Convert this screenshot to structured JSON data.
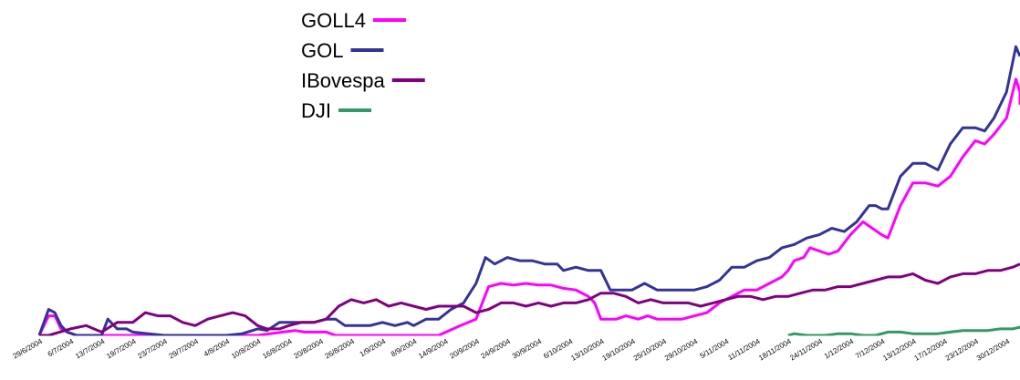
{
  "chart_data": {
    "type": "line",
    "title": "",
    "xlabel": "",
    "ylabel": "",
    "x_ticks": [
      "29/6/2004",
      "6/7/2004",
      "13/7/2004",
      "19/7/2004",
      "23/7/2004",
      "29/7/2004",
      "4/8/2004",
      "10/8/2004",
      "16/8/2004",
      "20/8/2004",
      "26/8/2004",
      "1/9/2004",
      "8/9/2004",
      "14/9/2004",
      "20/9/2004",
      "24/9/2004",
      "30/9/2004",
      "6/10/2004",
      "13/10/2004",
      "19/10/2004",
      "25/10/2004",
      "29/10/2004",
      "5/11/2004",
      "11/11/2004",
      "18/11/2004",
      "24/11/2004",
      "1/12/2004",
      "7/12/2004",
      "13/12/2004",
      "17/12/2004",
      "23/12/2004",
      "30/12/2004"
    ],
    "xlim": [
      0,
      31.6
    ],
    "ylim": [
      0,
      100
    ],
    "legend_position": "top-center",
    "grid": false,
    "series": [
      {
        "name": "GOLL4",
        "color": "#ff00ff",
        "points": [
          [
            0,
            0
          ],
          [
            0.3,
            6
          ],
          [
            0.5,
            6
          ],
          [
            0.7,
            2
          ],
          [
            0.9,
            1
          ],
          [
            1.2,
            0
          ],
          [
            2,
            0
          ],
          [
            3,
            0
          ],
          [
            3.5,
            0
          ],
          [
            4,
            0
          ],
          [
            6,
            0
          ],
          [
            7,
            0
          ],
          [
            7.8,
            1
          ],
          [
            8.2,
            1.5
          ],
          [
            8.5,
            1
          ],
          [
            8.8,
            1
          ],
          [
            9.2,
            1
          ],
          [
            9.5,
            0
          ],
          [
            12.8,
            0
          ],
          [
            13.5,
            3
          ],
          [
            14,
            5
          ],
          [
            14.4,
            15
          ],
          [
            14.8,
            16
          ],
          [
            15.2,
            15.5
          ],
          [
            15.6,
            16
          ],
          [
            16,
            15.5
          ],
          [
            16.4,
            15.5
          ],
          [
            16.8,
            14.5
          ],
          [
            17.2,
            14
          ],
          [
            17.6,
            12
          ],
          [
            17.8,
            10
          ],
          [
            18,
            5
          ],
          [
            18.5,
            5
          ],
          [
            18.8,
            6
          ],
          [
            19.2,
            5
          ],
          [
            19.5,
            6
          ],
          [
            19.8,
            5
          ],
          [
            20.2,
            5
          ],
          [
            20.6,
            5
          ],
          [
            21,
            6
          ],
          [
            21.4,
            7
          ],
          [
            21.8,
            10
          ],
          [
            22.2,
            12
          ],
          [
            22.6,
            14
          ],
          [
            23,
            14
          ],
          [
            23.4,
            16
          ],
          [
            23.8,
            18
          ],
          [
            24,
            20
          ],
          [
            24.2,
            23
          ],
          [
            24.5,
            24
          ],
          [
            24.7,
            27
          ],
          [
            25,
            26
          ],
          [
            25.3,
            25
          ],
          [
            25.6,
            26
          ],
          [
            26,
            31
          ],
          [
            26.4,
            35
          ],
          [
            26.7,
            33
          ],
          [
            27,
            31
          ],
          [
            27.2,
            30
          ],
          [
            27.6,
            40
          ],
          [
            28,
            47
          ],
          [
            28.4,
            47
          ],
          [
            28.8,
            46
          ],
          [
            29.2,
            49
          ],
          [
            29.6,
            55
          ],
          [
            30,
            60
          ],
          [
            30.3,
            59
          ],
          [
            30.6,
            62
          ],
          [
            31,
            67
          ],
          [
            31.3,
            79
          ],
          [
            31.6,
            75
          ],
          [
            32,
            71
          ]
        ]
      },
      {
        "name": "GOL",
        "color": "#333399",
        "points": [
          [
            0,
            0
          ],
          [
            0.3,
            8
          ],
          [
            0.5,
            7
          ],
          [
            0.7,
            3
          ],
          [
            0.9,
            1
          ],
          [
            1.2,
            0
          ],
          [
            1.5,
            0
          ],
          [
            2,
            0
          ],
          [
            2.2,
            5
          ],
          [
            2.5,
            2
          ],
          [
            2.8,
            2
          ],
          [
            3,
            1
          ],
          [
            3.5,
            0.5
          ],
          [
            4,
            0
          ],
          [
            5,
            0
          ],
          [
            6,
            0
          ],
          [
            6.5,
            0.5
          ],
          [
            7,
            2
          ],
          [
            7.3,
            1.5
          ],
          [
            7.7,
            4
          ],
          [
            8,
            4
          ],
          [
            8.4,
            4
          ],
          [
            8.8,
            4
          ],
          [
            9.2,
            5
          ],
          [
            9.5,
            5
          ],
          [
            9.8,
            3
          ],
          [
            10.2,
            3
          ],
          [
            10.6,
            3
          ],
          [
            11,
            4
          ],
          [
            11.4,
            3
          ],
          [
            11.8,
            4
          ],
          [
            12,
            3
          ],
          [
            12.4,
            5
          ],
          [
            12.8,
            5
          ],
          [
            13.2,
            8
          ],
          [
            13.6,
            10
          ],
          [
            14,
            16
          ],
          [
            14.3,
            24
          ],
          [
            14.6,
            22
          ],
          [
            15,
            24
          ],
          [
            15.4,
            23
          ],
          [
            15.8,
            23
          ],
          [
            16.2,
            22
          ],
          [
            16.6,
            22
          ],
          [
            16.8,
            20
          ],
          [
            17.2,
            21
          ],
          [
            17.6,
            20
          ],
          [
            18,
            20
          ],
          [
            18.3,
            14
          ],
          [
            18.7,
            14
          ],
          [
            19,
            14
          ],
          [
            19.4,
            16
          ],
          [
            19.8,
            14
          ],
          [
            20.2,
            14
          ],
          [
            20.6,
            14
          ],
          [
            21,
            14
          ],
          [
            21.4,
            15
          ],
          [
            21.8,
            17
          ],
          [
            22.2,
            21
          ],
          [
            22.6,
            21
          ],
          [
            23,
            23
          ],
          [
            23.4,
            24
          ],
          [
            23.8,
            27
          ],
          [
            24.2,
            28
          ],
          [
            24.6,
            30
          ],
          [
            25,
            31
          ],
          [
            25.4,
            33
          ],
          [
            25.8,
            32
          ],
          [
            26.2,
            35
          ],
          [
            26.6,
            40
          ],
          [
            26.8,
            40
          ],
          [
            27,
            39
          ],
          [
            27.2,
            39
          ],
          [
            27.6,
            49
          ],
          [
            28,
            53
          ],
          [
            28.4,
            53
          ],
          [
            28.8,
            51
          ],
          [
            29.2,
            59
          ],
          [
            29.6,
            64
          ],
          [
            30,
            64
          ],
          [
            30.3,
            63
          ],
          [
            30.6,
            67
          ],
          [
            31,
            75
          ],
          [
            31.3,
            89
          ],
          [
            31.6,
            86
          ],
          [
            32,
            86
          ]
        ]
      },
      {
        "name": "IBovespa",
        "color": "#800080",
        "points": [
          [
            0,
            0
          ],
          [
            0.3,
            0
          ],
          [
            1,
            2
          ],
          [
            1.5,
            3
          ],
          [
            2,
            1
          ],
          [
            2.5,
            4
          ],
          [
            3,
            4
          ],
          [
            3.4,
            7
          ],
          [
            3.8,
            6
          ],
          [
            4.2,
            6
          ],
          [
            4.6,
            4
          ],
          [
            5,
            3
          ],
          [
            5.4,
            5
          ],
          [
            5.8,
            6
          ],
          [
            6.2,
            7
          ],
          [
            6.6,
            6
          ],
          [
            7,
            3
          ],
          [
            7.3,
            2
          ],
          [
            7.7,
            2
          ],
          [
            8,
            3
          ],
          [
            8.4,
            4
          ],
          [
            8.8,
            4
          ],
          [
            9.2,
            5
          ],
          [
            9.6,
            9
          ],
          [
            10,
            11
          ],
          [
            10.4,
            10
          ],
          [
            10.8,
            11
          ],
          [
            11.2,
            9
          ],
          [
            11.6,
            10
          ],
          [
            12,
            9
          ],
          [
            12.4,
            8
          ],
          [
            12.8,
            9
          ],
          [
            13.2,
            9
          ],
          [
            13.6,
            9
          ],
          [
            14,
            7
          ],
          [
            14.4,
            8
          ],
          [
            14.8,
            10
          ],
          [
            15.2,
            10
          ],
          [
            15.6,
            9
          ],
          [
            16,
            10
          ],
          [
            16.4,
            9
          ],
          [
            16.8,
            10
          ],
          [
            17.2,
            10
          ],
          [
            17.6,
            11
          ],
          [
            18,
            13
          ],
          [
            18.4,
            13
          ],
          [
            18.8,
            12
          ],
          [
            19.2,
            10
          ],
          [
            19.6,
            11
          ],
          [
            20,
            10
          ],
          [
            20.4,
            10
          ],
          [
            20.8,
            10
          ],
          [
            21.2,
            9
          ],
          [
            21.6,
            10
          ],
          [
            22,
            11
          ],
          [
            22.4,
            12
          ],
          [
            22.8,
            12
          ],
          [
            23.2,
            11
          ],
          [
            23.6,
            12
          ],
          [
            24,
            12
          ],
          [
            24.4,
            13
          ],
          [
            24.8,
            14
          ],
          [
            25.2,
            14
          ],
          [
            25.6,
            15
          ],
          [
            26,
            15
          ],
          [
            26.4,
            16
          ],
          [
            26.8,
            17
          ],
          [
            27.2,
            18
          ],
          [
            27.6,
            18
          ],
          [
            28,
            19
          ],
          [
            28.4,
            17
          ],
          [
            28.8,
            16
          ],
          [
            29.2,
            18
          ],
          [
            29.6,
            19
          ],
          [
            30,
            19
          ],
          [
            30.4,
            20
          ],
          [
            30.8,
            20
          ],
          [
            31.2,
            21
          ],
          [
            31.6,
            22
          ],
          [
            32,
            22
          ]
        ]
      },
      {
        "name": "DJI",
        "color": "#339966",
        "points": [
          [
            24,
            0
          ],
          [
            24.2,
            0.5
          ],
          [
            24.6,
            0
          ],
          [
            25.2,
            0
          ],
          [
            25.6,
            0.5
          ],
          [
            26,
            0.5
          ],
          [
            26.4,
            0
          ],
          [
            26.8,
            0
          ],
          [
            27.2,
            1
          ],
          [
            27.6,
            1
          ],
          [
            28,
            0.5
          ],
          [
            28.4,
            0.5
          ],
          [
            28.8,
            0.5
          ],
          [
            29.2,
            1
          ],
          [
            29.6,
            1.5
          ],
          [
            30,
            1.5
          ],
          [
            30.4,
            1.5
          ],
          [
            30.8,
            2
          ],
          [
            31.2,
            2
          ],
          [
            31.6,
            2.5
          ],
          [
            32,
            2
          ]
        ]
      }
    ]
  }
}
